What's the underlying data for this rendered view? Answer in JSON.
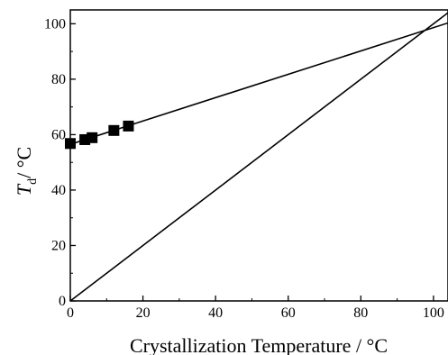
{
  "chart_data": {
    "type": "scatter",
    "title": "",
    "xlabel": "Crystallization Temperature / °C",
    "ylabel_main": "T",
    "ylabel_sub": "d",
    "ylabel_unit": "/ °C",
    "xlim": [
      0,
      104
    ],
    "ylim": [
      0,
      105
    ],
    "x_ticks": [
      0,
      20,
      40,
      60,
      80,
      100
    ],
    "y_ticks": [
      0,
      20,
      40,
      60,
      80,
      100
    ],
    "x_tick_labels": [
      "0",
      "20",
      "40",
      "60",
      "80",
      "100"
    ],
    "y_tick_labels": [
      "0",
      "20",
      "40",
      "60",
      "80",
      "100"
    ],
    "grid": false,
    "legend": "none",
    "series": [
      {
        "marker": "square",
        "color": "#000000",
        "points": [
          {
            "x": 0,
            "y": 56.8
          },
          {
            "x": 4,
            "y": 58.2
          },
          {
            "x": 6,
            "y": 58.9
          },
          {
            "x": 12,
            "y": 61.5
          },
          {
            "x": 16,
            "y": 63.1
          }
        ]
      }
    ],
    "lines": [
      {
        "kind": "linear fit",
        "x": [
          0,
          104
        ],
        "y": [
          56.5,
          100.3
        ],
        "color": "#000000"
      },
      {
        "kind": "Tm = Tc",
        "x": [
          0,
          104
        ],
        "y": [
          0,
          104
        ],
        "color": "#000000"
      }
    ]
  }
}
